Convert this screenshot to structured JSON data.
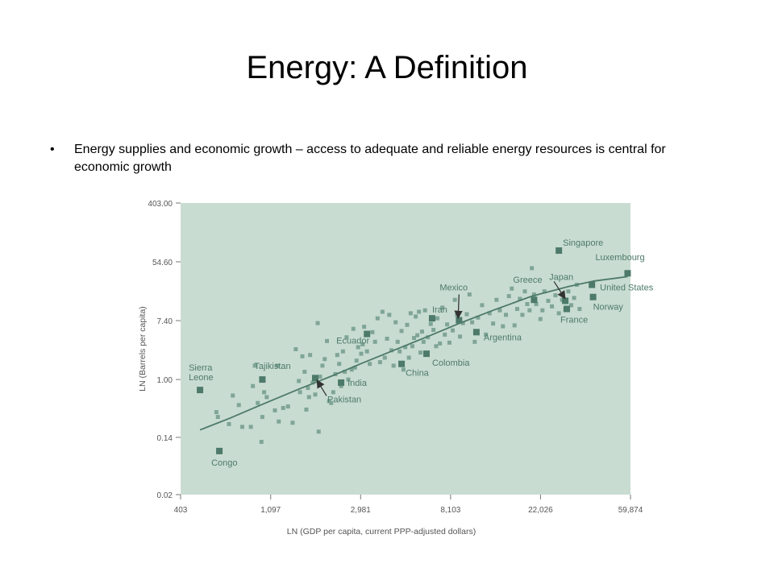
{
  "slide": {
    "title": "Energy: A Definition",
    "bullet_marker": "•",
    "bullet_text": "Energy supplies and economic growth – access to adequate and reliable energy resources is central for economic growth"
  },
  "colors": {
    "plot_background": "#c9dcd2",
    "marker": "#4d7a6a",
    "marker_light": "#7fa597",
    "tick_text": "#555555"
  },
  "chart_data": {
    "type": "scatter",
    "title": "",
    "xlabel": "LN (GDP per capita, current PPP-adjusted dollars)",
    "ylabel": "LN (Barrels per capita)",
    "x_scale": "log",
    "y_scale": "log",
    "xlim": [
      403,
      59874
    ],
    "ylim": [
      0.02,
      403.0
    ],
    "x_ticks": [
      403,
      1097,
      2981,
      8103,
      22026,
      59874
    ],
    "x_tick_labels": [
      "403",
      "1,097",
      "2,981",
      "8,103",
      "22,026",
      "59,874"
    ],
    "y_ticks": [
      0.02,
      0.14,
      1.0,
      7.4,
      54.6,
      403.0
    ],
    "y_tick_labels": [
      "0.02",
      "0.14",
      "1.00",
      "7.40",
      "54.60",
      "403.00"
    ],
    "grid": false,
    "labeled_points": [
      {
        "label": "Sierra Leone",
        "label_lines": [
          "Sierra",
          "Leone"
        ],
        "x": 500,
        "y": 0.7
      },
      {
        "label": "Congo",
        "x": 620,
        "y": 0.088
      },
      {
        "label": "Tajikistan",
        "x": 1000,
        "y": 1.0
      },
      {
        "label": "Pakistan",
        "x": 1800,
        "y": 1.05
      },
      {
        "label": "India",
        "x": 2400,
        "y": 0.9
      },
      {
        "label": "Ecuador",
        "x": 3200,
        "y": 4.7
      },
      {
        "label": "China",
        "x": 4700,
        "y": 1.7
      },
      {
        "label": "Colombia",
        "x": 6200,
        "y": 2.4
      },
      {
        "label": "Iran",
        "x": 6600,
        "y": 8.0
      },
      {
        "label": "Mexico",
        "x": 8900,
        "y": 7.5
      },
      {
        "label": "Argentina",
        "x": 10800,
        "y": 5.0
      },
      {
        "label": "Greece",
        "x": 20500,
        "y": 15.0
      },
      {
        "label": "Singapore",
        "x": 27000,
        "y": 80.0
      },
      {
        "label": "Japan",
        "x": 29000,
        "y": 14.5
      },
      {
        "label": "France",
        "x": 29500,
        "y": 11.0
      },
      {
        "label": "United States",
        "x": 39000,
        "y": 25.0
      },
      {
        "label": "Norway",
        "x": 39500,
        "y": 16.5
      },
      {
        "label": "Luxembourg",
        "x": 58000,
        "y": 37.0
      }
    ],
    "other_points": [
      [
        600,
        0.33
      ],
      [
        610,
        0.28
      ],
      [
        690,
        0.22
      ],
      [
        720,
        0.58
      ],
      [
        770,
        0.42
      ],
      [
        800,
        0.2
      ],
      [
        880,
        0.2
      ],
      [
        900,
        0.8
      ],
      [
        920,
        1.6
      ],
      [
        950,
        0.45
      ],
      [
        990,
        0.12
      ],
      [
        1000,
        0.28
      ],
      [
        1020,
        0.65
      ],
      [
        1050,
        0.55
      ],
      [
        1150,
        0.35
      ],
      [
        1180,
        1.6
      ],
      [
        1200,
        0.24
      ],
      [
        1260,
        0.38
      ],
      [
        1330,
        0.4
      ],
      [
        1400,
        0.23
      ],
      [
        1450,
        2.8
      ],
      [
        1500,
        0.95
      ],
      [
        1520,
        0.65
      ],
      [
        1560,
        2.2
      ],
      [
        1600,
        1.3
      ],
      [
        1630,
        0.36
      ],
      [
        1660,
        0.75
      ],
      [
        1680,
        0.55
      ],
      [
        1700,
        2.3
      ],
      [
        1750,
        0.9
      ],
      [
        1800,
        0.6
      ],
      [
        1850,
        6.8
      ],
      [
        1870,
        0.17
      ],
      [
        1900,
        1.1
      ],
      [
        1950,
        1.6
      ],
      [
        2000,
        2.0
      ],
      [
        2050,
        3.7
      ],
      [
        2100,
        0.48
      ],
      [
        2150,
        0.45
      ],
      [
        2200,
        0.65
      ],
      [
        2250,
        1.2
      ],
      [
        2300,
        2.3
      ],
      [
        2350,
        1.7
      ],
      [
        2400,
        0.8
      ],
      [
        2450,
        2.6
      ],
      [
        2500,
        1.3
      ],
      [
        2550,
        4.2
      ],
      [
        2600,
        1.0
      ],
      [
        2700,
        1.4
      ],
      [
        2750,
        5.6
      ],
      [
        2800,
        1.5
      ],
      [
        2850,
        1.9
      ],
      [
        2900,
        3.0
      ],
      [
        3000,
        2.4
      ],
      [
        3050,
        3.3
      ],
      [
        3100,
        6.0
      ],
      [
        3200,
        2.6
      ],
      [
        3300,
        1.7
      ],
      [
        3400,
        5.0
      ],
      [
        3500,
        3.6
      ],
      [
        3600,
        8.0
      ],
      [
        3700,
        1.8
      ],
      [
        3800,
        10.0
      ],
      [
        3900,
        2.1
      ],
      [
        4000,
        4.0
      ],
      [
        4100,
        9.0
      ],
      [
        4200,
        2.7
      ],
      [
        4300,
        1.6
      ],
      [
        4400,
        7.0
      ],
      [
        4500,
        3.6
      ],
      [
        4600,
        2.6
      ],
      [
        4700,
        5.2
      ],
      [
        4800,
        1.4
      ],
      [
        4900,
        3.0
      ],
      [
        5000,
        6.4
      ],
      [
        5100,
        2.1
      ],
      [
        5200,
        9.5
      ],
      [
        5300,
        3.1
      ],
      [
        5400,
        4.1
      ],
      [
        5500,
        8.5
      ],
      [
        5600,
        4.5
      ],
      [
        5700,
        10.0
      ],
      [
        5800,
        2.5
      ],
      [
        5900,
        5.1
      ],
      [
        6000,
        3.6
      ],
      [
        6100,
        10.5
      ],
      [
        6300,
        4.2
      ],
      [
        6500,
        6.6
      ],
      [
        6700,
        5.4
      ],
      [
        6900,
        3.1
      ],
      [
        7000,
        8.0
      ],
      [
        7200,
        3.4
      ],
      [
        7400,
        11.5
      ],
      [
        7600,
        4.6
      ],
      [
        7800,
        6.5
      ],
      [
        8000,
        3.5
      ],
      [
        8300,
        5.3
      ],
      [
        8500,
        15.0
      ],
      [
        8700,
        9.0
      ],
      [
        9000,
        4.3
      ],
      [
        9300,
        6.8
      ],
      [
        9700,
        9.2
      ],
      [
        10000,
        18.0
      ],
      [
        10300,
        7.0
      ],
      [
        10600,
        3.6
      ],
      [
        11000,
        8.2
      ],
      [
        11500,
        12.5
      ],
      [
        12000,
        4.6
      ],
      [
        12500,
        9.5
      ],
      [
        13000,
        6.7
      ],
      [
        13500,
        15.0
      ],
      [
        14000,
        10.5
      ],
      [
        14500,
        6.1
      ],
      [
        15000,
        9.0
      ],
      [
        15500,
        17.0
      ],
      [
        16000,
        22.0
      ],
      [
        16500,
        6.3
      ],
      [
        17000,
        11.0
      ],
      [
        17500,
        15.5
      ],
      [
        18000,
        9.0
      ],
      [
        18500,
        20.0
      ],
      [
        19000,
        13.0
      ],
      [
        19500,
        10.5
      ],
      [
        20000,
        44.0
      ],
      [
        20500,
        18.0
      ],
      [
        21000,
        13.0
      ],
      [
        22000,
        7.8
      ],
      [
        22500,
        10.5
      ],
      [
        23000,
        20.0
      ],
      [
        24000,
        14.5
      ],
      [
        25000,
        12.0
      ],
      [
        26000,
        17.5
      ],
      [
        27000,
        9.5
      ],
      [
        28000,
        15.0
      ],
      [
        29000,
        10.8
      ],
      [
        30000,
        20.0
      ],
      [
        31000,
        12.5
      ],
      [
        32000,
        16.0
      ],
      [
        33000,
        25.0
      ],
      [
        34000,
        11.0
      ]
    ],
    "fit_curve": {
      "x": [
        500,
        700,
        1000,
        1500,
        2200,
        3000,
        4500,
        6500,
        9000,
        13000,
        20000,
        30000,
        40000,
        58000
      ],
      "y": [
        0.18,
        0.27,
        0.43,
        0.72,
        1.15,
        1.72,
        2.85,
        4.5,
        6.8,
        10.5,
        17.0,
        23.5,
        28.5,
        33.0
      ]
    }
  }
}
